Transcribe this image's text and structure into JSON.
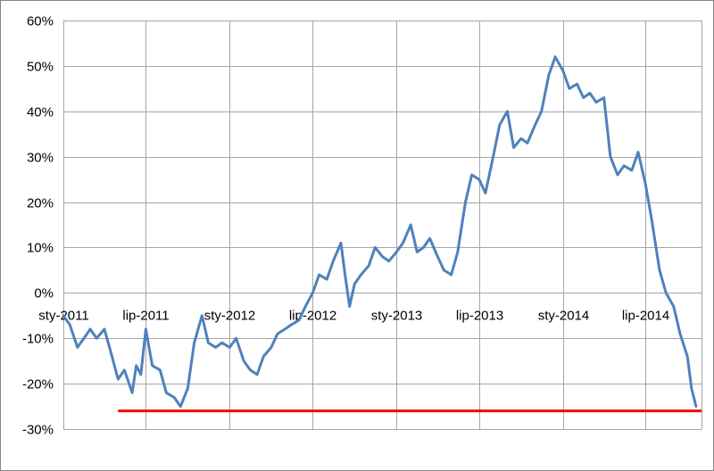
{
  "chart_data": {
    "type": "line",
    "title": "",
    "xlabel": "",
    "ylabel": "",
    "ylim": [
      -0.3,
      0.6
    ],
    "xlim": [
      "2011-01-01",
      "2014-11-01"
    ],
    "y_ticks": [
      {
        "value": 0.6,
        "label": "60%"
      },
      {
        "value": 0.5,
        "label": "50%"
      },
      {
        "value": 0.4,
        "label": "40%"
      },
      {
        "value": 0.3,
        "label": "30%"
      },
      {
        "value": 0.2,
        "label": "20%"
      },
      {
        "value": 0.1,
        "label": "10%"
      },
      {
        "value": 0.0,
        "label": "0%"
      },
      {
        "value": -0.1,
        "label": "-10%"
      },
      {
        "value": -0.2,
        "label": "-20%"
      },
      {
        "value": -0.3,
        "label": "-30%"
      }
    ],
    "x_ticks": [
      {
        "date": "2011-01-01",
        "label": "sty-2011"
      },
      {
        "date": "2011-07-01",
        "label": "lip-2011"
      },
      {
        "date": "2012-01-01",
        "label": "sty-2012"
      },
      {
        "date": "2012-07-01",
        "label": "lip-2012"
      },
      {
        "date": "2013-01-01",
        "label": "sty-2013"
      },
      {
        "date": "2013-07-01",
        "label": "lip-2013"
      },
      {
        "date": "2014-01-01",
        "label": "sty-2014"
      },
      {
        "date": "2014-07-01",
        "label": "lip-2014"
      }
    ],
    "grid": true,
    "colors": {
      "series": "#4f81bd",
      "reference": "#ff0000",
      "grid": "#a6a6a6",
      "border": "#868686"
    },
    "series": [
      {
        "x": [
          "2011-01-01",
          "2011-01-15",
          "2011-02-01",
          "2011-02-15",
          "2011-03-01",
          "2011-03-15",
          "2011-04-01",
          "2011-04-15",
          "2011-05-01",
          "2011-05-15",
          "2011-06-01",
          "2011-06-10",
          "2011-06-20",
          "2011-07-01",
          "2011-07-15",
          "2011-08-01",
          "2011-08-15",
          "2011-09-01",
          "2011-09-15",
          "2011-10-01",
          "2011-10-15",
          "2011-11-01",
          "2011-11-15",
          "2011-12-01",
          "2011-12-15",
          "2012-01-01",
          "2012-01-15",
          "2012-02-01",
          "2012-02-15",
          "2012-03-01",
          "2012-03-15",
          "2012-04-01",
          "2012-04-15",
          "2012-05-01",
          "2012-05-15",
          "2012-06-01",
          "2012-06-15",
          "2012-07-01",
          "2012-07-15",
          "2012-08-01",
          "2012-08-15",
          "2012-09-01",
          "2012-09-10",
          "2012-09-20",
          "2012-10-01",
          "2012-10-15",
          "2012-11-01",
          "2012-11-15",
          "2012-12-01",
          "2012-12-15",
          "2013-01-01",
          "2013-01-15",
          "2013-02-01",
          "2013-02-15",
          "2013-03-01",
          "2013-03-15",
          "2013-04-01",
          "2013-04-15",
          "2013-05-01",
          "2013-05-15",
          "2013-06-01",
          "2013-06-15",
          "2013-07-01",
          "2013-07-15",
          "2013-08-01",
          "2013-08-15",
          "2013-09-01",
          "2013-09-15",
          "2013-10-01",
          "2013-10-15",
          "2013-11-01",
          "2013-11-15",
          "2013-12-01",
          "2013-12-15",
          "2014-01-01",
          "2014-01-15",
          "2014-02-01",
          "2014-02-15",
          "2014-03-01",
          "2014-03-15",
          "2014-04-01",
          "2014-04-15",
          "2014-05-01",
          "2014-05-15",
          "2014-06-01",
          "2014-06-15",
          "2014-07-01",
          "2014-07-15",
          "2014-08-01",
          "2014-08-15",
          "2014-09-01",
          "2014-09-15",
          "2014-10-01",
          "2014-10-10",
          "2014-10-20"
        ],
        "values": [
          -0.05,
          -0.07,
          -0.12,
          -0.1,
          -0.08,
          -0.1,
          -0.08,
          -0.13,
          -0.19,
          -0.17,
          -0.22,
          -0.16,
          -0.18,
          -0.08,
          -0.16,
          -0.17,
          -0.22,
          -0.23,
          -0.25,
          -0.21,
          -0.11,
          -0.05,
          -0.11,
          -0.12,
          -0.11,
          -0.12,
          -0.1,
          -0.15,
          -0.17,
          -0.18,
          -0.14,
          -0.12,
          -0.09,
          -0.08,
          -0.07,
          -0.06,
          -0.03,
          0.0,
          0.04,
          0.03,
          0.07,
          0.11,
          0.04,
          -0.03,
          0.02,
          0.04,
          0.06,
          0.1,
          0.08,
          0.07,
          0.09,
          0.11,
          0.15,
          0.09,
          0.1,
          0.12,
          0.08,
          0.05,
          0.04,
          0.09,
          0.2,
          0.26,
          0.25,
          0.22,
          0.3,
          0.37,
          0.4,
          0.32,
          0.34,
          0.33,
          0.37,
          0.4,
          0.48,
          0.52,
          0.49,
          0.45,
          0.46,
          0.43,
          0.44,
          0.42,
          0.43,
          0.3,
          0.26,
          0.28,
          0.27,
          0.31,
          0.24,
          0.16,
          0.05,
          0.0,
          -0.03,
          -0.09,
          -0.14,
          -0.21,
          -0.25
        ]
      }
    ],
    "reference_lines": [
      {
        "value": -0.26,
        "from": "2011-05-01",
        "to": "2014-11-01"
      }
    ]
  }
}
